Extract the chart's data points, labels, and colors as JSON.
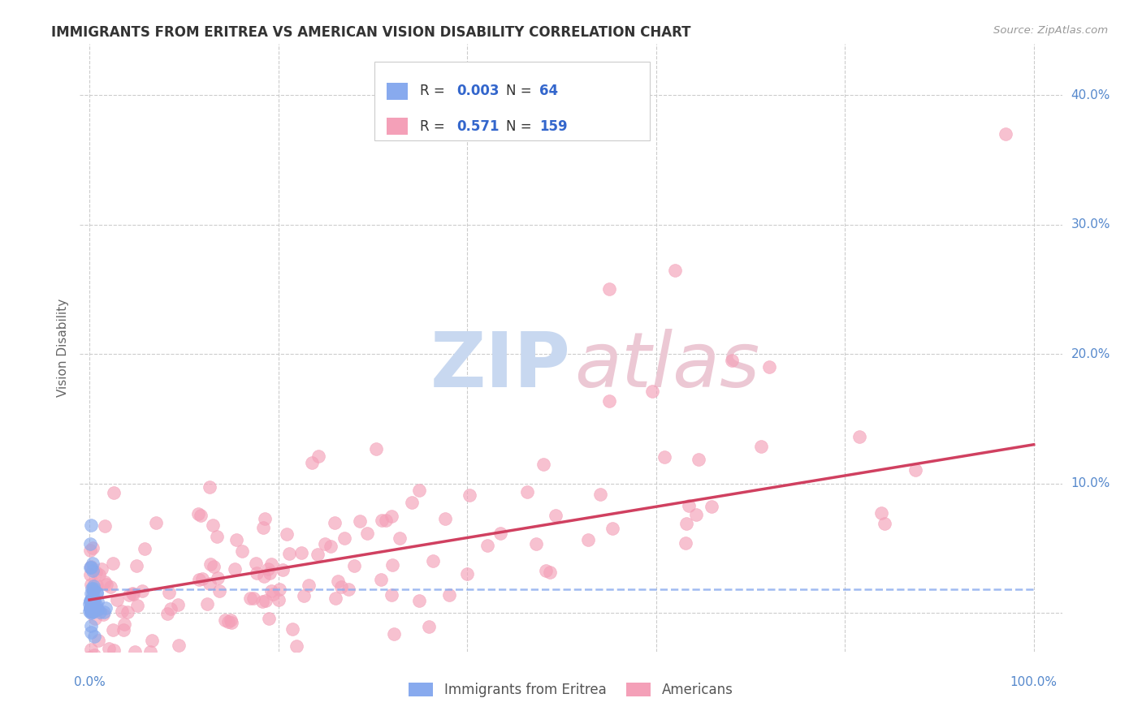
{
  "title": "IMMIGRANTS FROM ERITREA VS AMERICAN VISION DISABILITY CORRELATION CHART",
  "source": "Source: ZipAtlas.com",
  "ylabel": "Vision Disability",
  "y_ticks": [
    0.0,
    0.1,
    0.2,
    0.3,
    0.4
  ],
  "x_ticks": [
    0.0,
    0.2,
    0.4,
    0.6,
    0.8,
    1.0
  ],
  "xlim": [
    -0.01,
    1.03
  ],
  "ylim": [
    -0.03,
    0.44
  ],
  "blue_R": 0.003,
  "blue_N": 64,
  "pink_R": 0.571,
  "pink_N": 159,
  "blue_scatter_color": "#88aaee",
  "pink_scatter_color": "#f4a0b8",
  "blue_line_color": "#88aaee",
  "pink_line_color": "#d04060",
  "background_color": "#ffffff",
  "grid_color": "#cccccc",
  "title_color": "#333333",
  "source_color": "#999999",
  "watermark_color_zip": "#c8d8f0",
  "watermark_color_atlas": "#ecc8d4",
  "axis_label_color": "#5588cc",
  "ylabel_color": "#666666",
  "legend_text_color": "#333333",
  "legend_value_color": "#3366cc",
  "legend_label_blue": "Immigrants from Eritrea",
  "legend_label_pink": "Americans",
  "pink_slope": 0.12,
  "pink_intercept": 0.01,
  "blue_intercept": 0.018
}
